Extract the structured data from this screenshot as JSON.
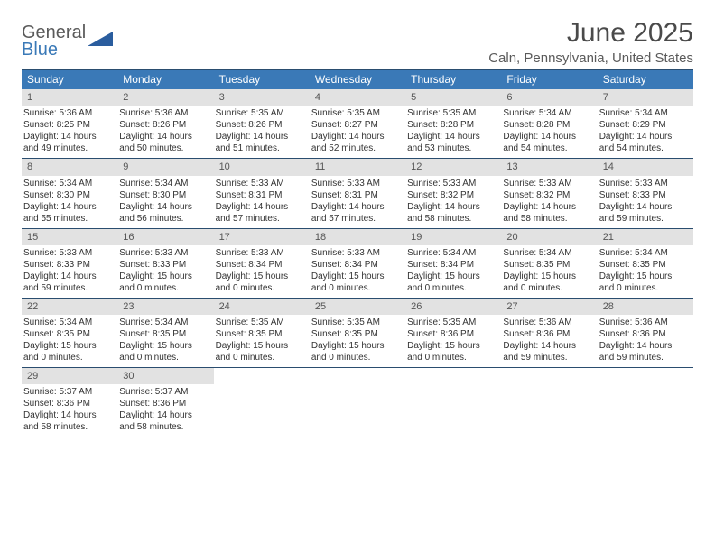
{
  "logo": {
    "line1": "General",
    "line2": "Blue"
  },
  "title": "June 2025",
  "location": "Caln, Pennsylvania, United States",
  "colors": {
    "header_bg": "#3a79b7",
    "border": "#2a4d6f",
    "daynum_bg": "#e2e2e2",
    "text": "#333333"
  },
  "days_of_week": [
    "Sunday",
    "Monday",
    "Tuesday",
    "Wednesday",
    "Thursday",
    "Friday",
    "Saturday"
  ],
  "weeks": [
    [
      {
        "n": "1",
        "sr": "Sunrise: 5:36 AM",
        "ss": "Sunset: 8:25 PM",
        "d1": "Daylight: 14 hours",
        "d2": "and 49 minutes."
      },
      {
        "n": "2",
        "sr": "Sunrise: 5:36 AM",
        "ss": "Sunset: 8:26 PM",
        "d1": "Daylight: 14 hours",
        "d2": "and 50 minutes."
      },
      {
        "n": "3",
        "sr": "Sunrise: 5:35 AM",
        "ss": "Sunset: 8:26 PM",
        "d1": "Daylight: 14 hours",
        "d2": "and 51 minutes."
      },
      {
        "n": "4",
        "sr": "Sunrise: 5:35 AM",
        "ss": "Sunset: 8:27 PM",
        "d1": "Daylight: 14 hours",
        "d2": "and 52 minutes."
      },
      {
        "n": "5",
        "sr": "Sunrise: 5:35 AM",
        "ss": "Sunset: 8:28 PM",
        "d1": "Daylight: 14 hours",
        "d2": "and 53 minutes."
      },
      {
        "n": "6",
        "sr": "Sunrise: 5:34 AM",
        "ss": "Sunset: 8:28 PM",
        "d1": "Daylight: 14 hours",
        "d2": "and 54 minutes."
      },
      {
        "n": "7",
        "sr": "Sunrise: 5:34 AM",
        "ss": "Sunset: 8:29 PM",
        "d1": "Daylight: 14 hours",
        "d2": "and 54 minutes."
      }
    ],
    [
      {
        "n": "8",
        "sr": "Sunrise: 5:34 AM",
        "ss": "Sunset: 8:30 PM",
        "d1": "Daylight: 14 hours",
        "d2": "and 55 minutes."
      },
      {
        "n": "9",
        "sr": "Sunrise: 5:34 AM",
        "ss": "Sunset: 8:30 PM",
        "d1": "Daylight: 14 hours",
        "d2": "and 56 minutes."
      },
      {
        "n": "10",
        "sr": "Sunrise: 5:33 AM",
        "ss": "Sunset: 8:31 PM",
        "d1": "Daylight: 14 hours",
        "d2": "and 57 minutes."
      },
      {
        "n": "11",
        "sr": "Sunrise: 5:33 AM",
        "ss": "Sunset: 8:31 PM",
        "d1": "Daylight: 14 hours",
        "d2": "and 57 minutes."
      },
      {
        "n": "12",
        "sr": "Sunrise: 5:33 AM",
        "ss": "Sunset: 8:32 PM",
        "d1": "Daylight: 14 hours",
        "d2": "and 58 minutes."
      },
      {
        "n": "13",
        "sr": "Sunrise: 5:33 AM",
        "ss": "Sunset: 8:32 PM",
        "d1": "Daylight: 14 hours",
        "d2": "and 58 minutes."
      },
      {
        "n": "14",
        "sr": "Sunrise: 5:33 AM",
        "ss": "Sunset: 8:33 PM",
        "d1": "Daylight: 14 hours",
        "d2": "and 59 minutes."
      }
    ],
    [
      {
        "n": "15",
        "sr": "Sunrise: 5:33 AM",
        "ss": "Sunset: 8:33 PM",
        "d1": "Daylight: 14 hours",
        "d2": "and 59 minutes."
      },
      {
        "n": "16",
        "sr": "Sunrise: 5:33 AM",
        "ss": "Sunset: 8:33 PM",
        "d1": "Daylight: 15 hours",
        "d2": "and 0 minutes."
      },
      {
        "n": "17",
        "sr": "Sunrise: 5:33 AM",
        "ss": "Sunset: 8:34 PM",
        "d1": "Daylight: 15 hours",
        "d2": "and 0 minutes."
      },
      {
        "n": "18",
        "sr": "Sunrise: 5:33 AM",
        "ss": "Sunset: 8:34 PM",
        "d1": "Daylight: 15 hours",
        "d2": "and 0 minutes."
      },
      {
        "n": "19",
        "sr": "Sunrise: 5:34 AM",
        "ss": "Sunset: 8:34 PM",
        "d1": "Daylight: 15 hours",
        "d2": "and 0 minutes."
      },
      {
        "n": "20",
        "sr": "Sunrise: 5:34 AM",
        "ss": "Sunset: 8:35 PM",
        "d1": "Daylight: 15 hours",
        "d2": "and 0 minutes."
      },
      {
        "n": "21",
        "sr": "Sunrise: 5:34 AM",
        "ss": "Sunset: 8:35 PM",
        "d1": "Daylight: 15 hours",
        "d2": "and 0 minutes."
      }
    ],
    [
      {
        "n": "22",
        "sr": "Sunrise: 5:34 AM",
        "ss": "Sunset: 8:35 PM",
        "d1": "Daylight: 15 hours",
        "d2": "and 0 minutes."
      },
      {
        "n": "23",
        "sr": "Sunrise: 5:34 AM",
        "ss": "Sunset: 8:35 PM",
        "d1": "Daylight: 15 hours",
        "d2": "and 0 minutes."
      },
      {
        "n": "24",
        "sr": "Sunrise: 5:35 AM",
        "ss": "Sunset: 8:35 PM",
        "d1": "Daylight: 15 hours",
        "d2": "and 0 minutes."
      },
      {
        "n": "25",
        "sr": "Sunrise: 5:35 AM",
        "ss": "Sunset: 8:35 PM",
        "d1": "Daylight: 15 hours",
        "d2": "and 0 minutes."
      },
      {
        "n": "26",
        "sr": "Sunrise: 5:35 AM",
        "ss": "Sunset: 8:36 PM",
        "d1": "Daylight: 15 hours",
        "d2": "and 0 minutes."
      },
      {
        "n": "27",
        "sr": "Sunrise: 5:36 AM",
        "ss": "Sunset: 8:36 PM",
        "d1": "Daylight: 14 hours",
        "d2": "and 59 minutes."
      },
      {
        "n": "28",
        "sr": "Sunrise: 5:36 AM",
        "ss": "Sunset: 8:36 PM",
        "d1": "Daylight: 14 hours",
        "d2": "and 59 minutes."
      }
    ],
    [
      {
        "n": "29",
        "sr": "Sunrise: 5:37 AM",
        "ss": "Sunset: 8:36 PM",
        "d1": "Daylight: 14 hours",
        "d2": "and 58 minutes."
      },
      {
        "n": "30",
        "sr": "Sunrise: 5:37 AM",
        "ss": "Sunset: 8:36 PM",
        "d1": "Daylight: 14 hours",
        "d2": "and 58 minutes."
      },
      {
        "empty": true
      },
      {
        "empty": true
      },
      {
        "empty": true
      },
      {
        "empty": true
      },
      {
        "empty": true
      }
    ]
  ]
}
